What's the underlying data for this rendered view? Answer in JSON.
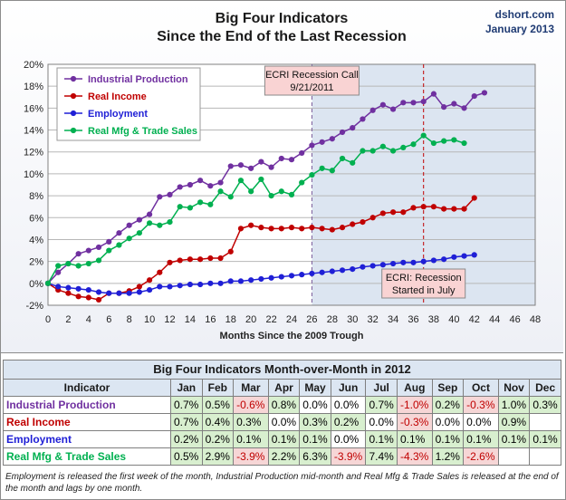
{
  "title_line1": "Big Four Indicators",
  "title_line2": "Since the End of the Last Recession",
  "brand": "dshort.com",
  "brand_date": "January  2013",
  "chart_data": {
    "type": "line",
    "title": "Big Four Indicators Since the End of the Last Recession",
    "xlabel": "Months Since the 2009 Trough",
    "ylabel": "",
    "xlim": [
      0,
      48
    ],
    "ylim": [
      -2,
      20
    ],
    "x_ticks": [
      0,
      2,
      4,
      6,
      8,
      10,
      12,
      14,
      16,
      18,
      20,
      22,
      24,
      26,
      28,
      30,
      32,
      34,
      36,
      38,
      40,
      42,
      44,
      46,
      48
    ],
    "y_ticks": [
      -2,
      0,
      2,
      4,
      6,
      8,
      10,
      12,
      14,
      16,
      18,
      20
    ],
    "y_tick_labels": [
      "-2%",
      "0%",
      "2%",
      "4%",
      "6%",
      "8%",
      "10%",
      "12%",
      "14%",
      "16%",
      "18%",
      "20%"
    ],
    "shaded_region": {
      "x_start": 26,
      "x_end": 48
    },
    "markers": [
      {
        "x": 26,
        "label_line1": "ECRI Recession Call",
        "label_line2": "9/21/2011",
        "label_pos": "top"
      },
      {
        "x": 37,
        "label_line1": "ECRI: Recession",
        "label_line2": "Started in July",
        "label_pos": "bottom"
      }
    ],
    "legend_position": "top-left",
    "series": [
      {
        "name": "Industrial Production",
        "color": "#7030a0",
        "values": [
          0,
          1.0,
          1.8,
          2.7,
          3.0,
          3.3,
          3.8,
          4.6,
          5.3,
          5.8,
          6.3,
          7.9,
          8.1,
          8.8,
          9.0,
          9.4,
          8.9,
          9.2,
          10.7,
          10.8,
          10.5,
          11.1,
          10.6,
          11.4,
          11.3,
          11.9,
          12.6,
          12.9,
          13.2,
          13.8,
          14.2,
          15.0,
          15.8,
          16.3,
          15.9,
          16.5,
          16.5,
          16.6,
          17.3,
          16.1,
          16.4,
          16.0,
          17.1,
          17.4
        ]
      },
      {
        "name": "Real Income",
        "color": "#c00000",
        "values": [
          0,
          -0.6,
          -0.9,
          -1.2,
          -1.3,
          -1.5,
          -0.9,
          -0.9,
          -0.7,
          -0.3,
          0.3,
          1.0,
          1.9,
          2.1,
          2.2,
          2.2,
          2.3,
          2.3,
          2.9,
          5.0,
          5.3,
          5.1,
          5.0,
          5.0,
          5.1,
          5.0,
          5.1,
          5.0,
          4.9,
          5.1,
          5.4,
          5.6,
          6.0,
          6.4,
          6.5,
          6.5,
          6.9,
          7.0,
          7.0,
          6.8,
          6.8,
          6.8,
          7.8
        ]
      },
      {
        "name": "Employment",
        "color": "#1f1fd6",
        "values": [
          0,
          -0.3,
          -0.4,
          -0.5,
          -0.6,
          -0.8,
          -0.9,
          -0.9,
          -0.9,
          -0.8,
          -0.6,
          -0.3,
          -0.3,
          -0.2,
          -0.1,
          -0.1,
          0.0,
          0.0,
          0.2,
          0.2,
          0.3,
          0.4,
          0.5,
          0.6,
          0.7,
          0.8,
          0.9,
          1.0,
          1.1,
          1.2,
          1.3,
          1.5,
          1.6,
          1.7,
          1.8,
          1.9,
          1.9,
          2.0,
          2.1,
          2.2,
          2.4,
          2.5,
          2.6
        ]
      },
      {
        "name": "Real Mfg & Trade Sales",
        "color": "#00b050",
        "values": [
          0,
          1.6,
          1.8,
          1.6,
          1.8,
          2.1,
          3.0,
          3.5,
          4.1,
          4.6,
          5.5,
          5.3,
          5.6,
          7.0,
          6.9,
          7.4,
          7.2,
          8.4,
          7.9,
          9.4,
          8.4,
          9.5,
          8.0,
          8.4,
          8.1,
          9.2,
          9.9,
          10.5,
          10.3,
          11.4,
          11.0,
          12.1,
          12.1,
          12.5,
          12.1,
          12.4,
          12.7,
          13.5,
          12.8,
          13.0,
          13.1,
          12.8
        ]
      }
    ]
  },
  "table": {
    "title": "Big Four Indicators Month-over-Month in 2012",
    "header_label": "Indicator",
    "months": [
      "Jan",
      "Feb",
      "Mar",
      "Apr",
      "May",
      "Jun",
      "Jul",
      "Aug",
      "Sep",
      "Oct",
      "Nov",
      "Dec"
    ],
    "rows": [
      {
        "name": "Industrial Production",
        "color": "#7030a0",
        "values": [
          "0.7%",
          "0.5%",
          "-0.6%",
          "0.8%",
          "0.0%",
          "0.0%",
          "0.7%",
          "-1.0%",
          "0.2%",
          "-0.3%",
          "1.0%",
          "0.3%"
        ]
      },
      {
        "name": "Real Income",
        "color": "#c00000",
        "values": [
          "0.7%",
          "0.4%",
          "0.3%",
          "0.0%",
          "0.3%",
          "0.2%",
          "0.0%",
          "-0.3%",
          "0.0%",
          "0.0%",
          "0.9%",
          ""
        ]
      },
      {
        "name": "Employment",
        "color": "#1f1fd6",
        "values": [
          "0.2%",
          "0.2%",
          "0.1%",
          "0.1%",
          "0.1%",
          "0.0%",
          "0.1%",
          "0.1%",
          "0.1%",
          "0.1%",
          "0.1%",
          "0.1%"
        ]
      },
      {
        "name": "Real Mfg & Trade Sales",
        "color": "#00b050",
        "values": [
          "0.5%",
          "2.9%",
          "-3.9%",
          "2.2%",
          "6.3%",
          "-3.9%",
          "7.4%",
          "-4.3%",
          "1.2%",
          "-2.6%",
          "",
          ""
        ]
      }
    ]
  },
  "footnote": "Employment is released the first week of the month, Industrial Production mid-month and Real Mfg & Trade Sales is released at the end of the month and lags by one month."
}
